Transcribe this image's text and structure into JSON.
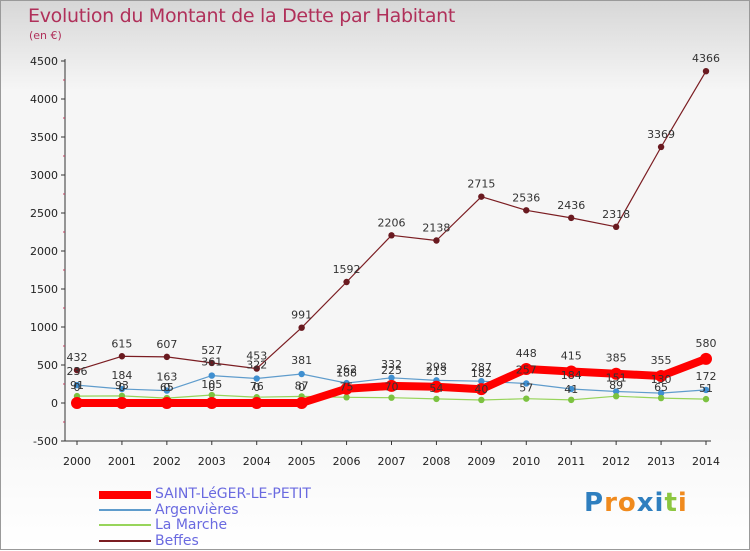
{
  "title": "Evolution du Montant de la Dette par Habitant",
  "unit_label": "(en €)",
  "logo_text": "Proxiti",
  "chart_data": {
    "type": "line",
    "title": "Evolution du Montant de la Dette par Habitant",
    "ylabel": "(en €)",
    "xlabel": "",
    "ylim": [
      -500,
      4500
    ],
    "yticks": [
      -500,
      0,
      500,
      1000,
      1500,
      2000,
      2500,
      3000,
      3500,
      4000,
      4500
    ],
    "x": [
      2000,
      2001,
      2002,
      2003,
      2004,
      2005,
      2006,
      2007,
      2008,
      2009,
      2010,
      2011,
      2012,
      2013,
      2014
    ],
    "grid": false,
    "legend_position": "bottom-left",
    "series": [
      {
        "name": "Beffes",
        "color": "#7b1d22",
        "values": [
          432,
          615,
          607,
          527,
          453,
          991,
          1592,
          2206,
          2138,
          2715,
          2536,
          2436,
          2318,
          3369,
          4366
        ]
      },
      {
        "name": "Argenvières",
        "color": "#5f9ccc",
        "values": [
          236,
          184,
          163,
          361,
          322,
          381,
          262,
          332,
          298,
          287,
          257,
          184,
          151,
          130,
          172
        ]
      },
      {
        "name": "La Marche",
        "color": "#97d45a",
        "values": [
          91,
          93,
          65,
          105,
          76,
          87,
          75,
          70,
          54,
          40,
          57,
          41,
          89,
          65,
          51
        ]
      },
      {
        "name": "SAINT-LéGER-LE-PETIT",
        "color": "#ff0000",
        "values": [
          0,
          0,
          0,
          0,
          0,
          0,
          188,
          225,
          213,
          182,
          448,
          415,
          385,
          355,
          580
        ]
      }
    ],
    "point_labels": {
      "Beffes": [
        "432",
        "615",
        "607",
        "527",
        "453",
        "991",
        "1592",
        "2206",
        "2138",
        "2715",
        "2536",
        "2436",
        "2318",
        "3369",
        "4366"
      ],
      "Argenvières": [
        "236",
        "184",
        "163",
        "361",
        "322",
        "381",
        "262",
        "332",
        "298",
        "287",
        "257",
        "184",
        "151",
        "130",
        "172"
      ],
      "La Marche": [
        "91",
        "93",
        "65",
        "105",
        "76",
        "87",
        "75",
        "70",
        "54",
        "40",
        "57",
        "41",
        "89",
        "65",
        "51"
      ],
      "SAINT-LéGER-LE-PETIT": [
        "0",
        "0",
        "0",
        "0",
        "0",
        "0",
        "188",
        "225",
        "213",
        "182",
        "448",
        "415",
        "385",
        "355",
        "580"
      ]
    }
  },
  "legend": [
    {
      "label": "SAINT-LéGER-LE-PETIT",
      "color": "#ff0000",
      "weight": 8
    },
    {
      "label": "Argenvières",
      "color": "#5f9ccc",
      "weight": 2
    },
    {
      "label": "La Marche",
      "color": "#97d45a",
      "weight": 2
    },
    {
      "label": "Beffes",
      "color": "#7b1d22",
      "weight": 2
    }
  ],
  "colors": {
    "title": "#b0305a",
    "axis": "#333333",
    "logo_P": "#2f7fbf",
    "logo_r": "#f08a1d",
    "logo_o": "#f08a1d",
    "logo_x": "#2f7fbf",
    "logo_i": "#2f7fbf",
    "logo_t": "#8cc63f",
    "logo_i2": "#f08a1d"
  }
}
